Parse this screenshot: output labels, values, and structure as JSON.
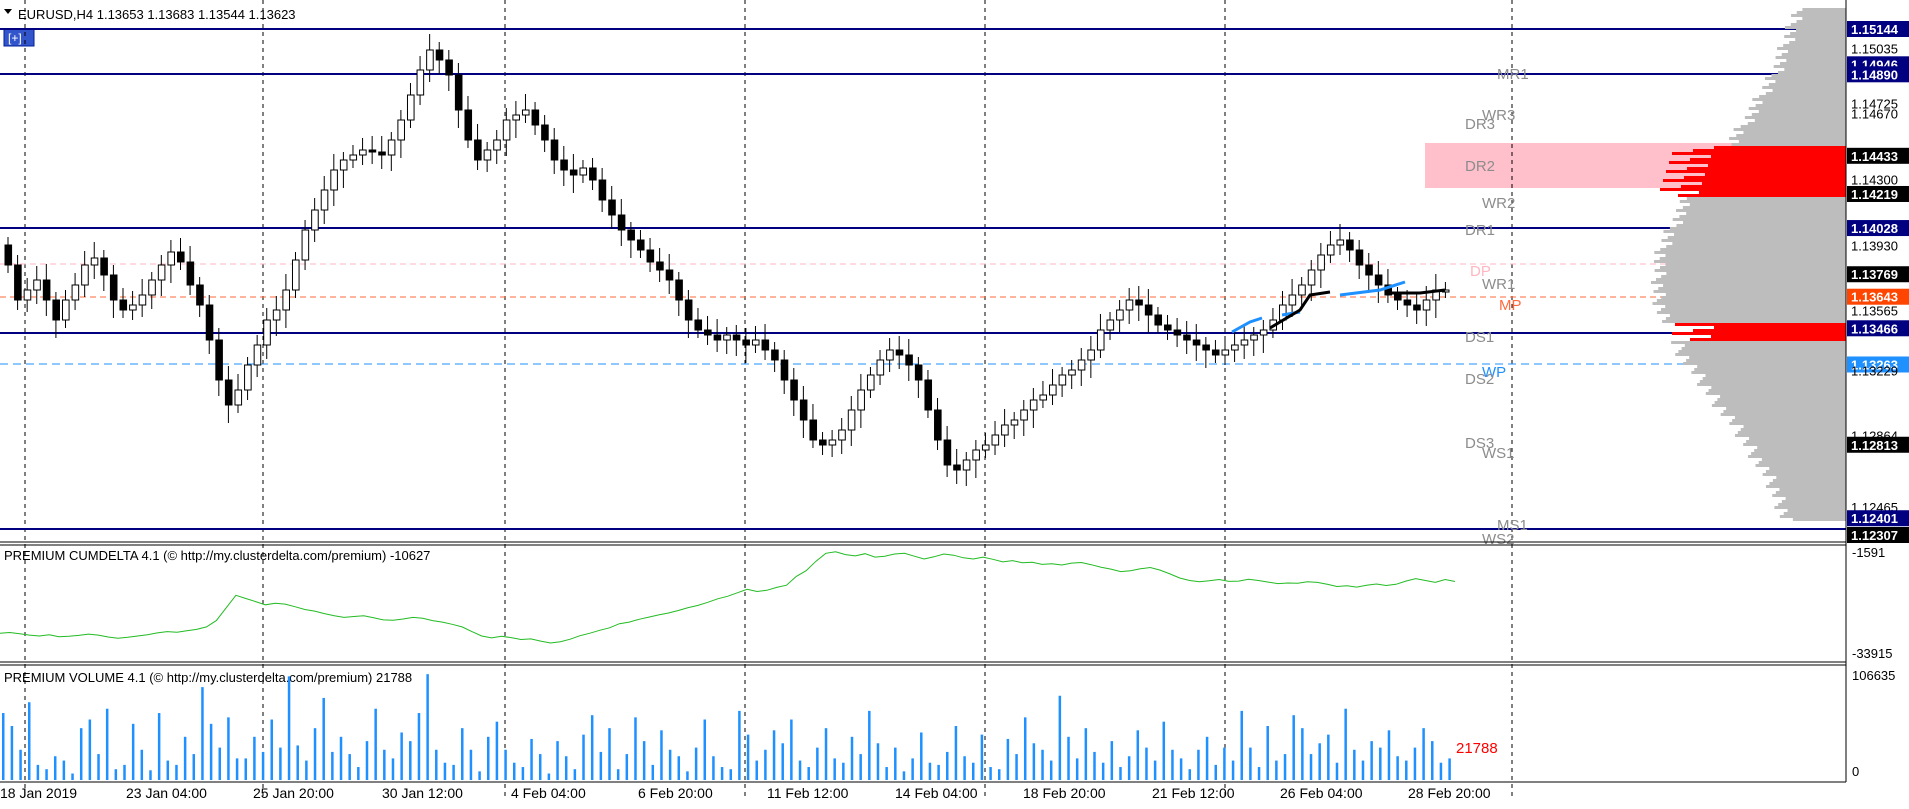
{
  "main": {
    "title": "EURUSD,H4  1.13653 1.13683 1.13544 1.13623",
    "expand_button": "[+]"
  },
  "price_scale": {
    "labels": [
      "1.15144",
      "1.15035",
      "1.14946",
      "1.14890",
      "1.14725",
      "1.14670",
      "1.14433",
      "1.14300",
      "1.14219",
      "1.14028",
      "1.13930",
      "1.13769",
      "1.13643",
      "1.13565",
      "1.13466",
      "1.13263",
      "1.13229",
      "1.12864",
      "1.12813",
      "1.12465",
      "1.12401",
      "1.12307"
    ],
    "highlighted": {
      "1.15144": "#000080",
      "1.14946": "#000080",
      "1.14890": "#000080",
      "1.14028": "#000080",
      "1.13466": "#000080",
      "1.12401": "#000080",
      "1.14433": "#000000",
      "1.14219": "#000000",
      "1.13769": "#000000",
      "1.12813": "#000000",
      "1.12307": "#000000",
      "1.13643": "#ff4500",
      "1.13263": "#1e90ff"
    }
  },
  "pivots": [
    "MR1",
    "WR3",
    "DR3",
    "DR2",
    "WR2",
    "DR1",
    "DP",
    "WR1",
    "MP",
    "DS1",
    "WP",
    "DS2",
    "DS3",
    "WS1",
    "MS1",
    "WS2"
  ],
  "time_axis": [
    "18 Jan 2019",
    "23 Jan 04:00",
    "25 Jan 20:00",
    "30 Jan 12:00",
    "4 Feb 04:00",
    "6 Feb 20:00",
    "11 Feb 12:00",
    "14 Feb 04:00",
    "18 Feb 20:00",
    "21 Feb 12:00",
    "26 Feb 04:00",
    "28 Feb 20:00"
  ],
  "cumdelta": {
    "title": "PREMIUM CUMDELTA 4.1 (© http://my.clusterdelta.com/premium) -10627",
    "scale_top": "-1591",
    "scale_bottom": "-33915",
    "values": [
      -27000,
      -26800,
      -27200,
      -27600,
      -27900,
      -27500,
      -28100,
      -28000,
      -27700,
      -27300,
      -27600,
      -28200,
      -28600,
      -28300,
      -27900,
      -27500,
      -26900,
      -26500,
      -26700,
      -26200,
      -25800,
      -25000,
      -23000,
      -19000,
      -15000,
      -16000,
      -17000,
      -18000,
      -17500,
      -17800,
      -18600,
      -19500,
      -20000,
      -20800,
      -21500,
      -22000,
      -21700,
      -21500,
      -22100,
      -22800,
      -22900,
      -22500,
      -22000,
      -22300,
      -23000,
      -23500,
      -24200,
      -25000,
      -26500,
      -27900,
      -28500,
      -28000,
      -28400,
      -29000,
      -28800,
      -29500,
      -30100,
      -29700,
      -28900,
      -27800,
      -27000,
      -26100,
      -25300,
      -24000,
      -23500,
      -22600,
      -21900,
      -21200,
      -20600,
      -19800,
      -18900,
      -18200,
      -17200,
      -16100,
      -15300,
      -14200,
      -13100,
      -13800,
      -13400,
      -12500,
      -11800,
      -9000,
      -7200,
      -4200,
      -1700,
      -1200,
      -2100,
      -2500,
      -1800,
      -2900,
      -2600,
      -1900,
      -1700,
      -2600,
      -3500,
      -2800,
      -1900,
      -2300,
      -3100,
      -3500,
      -2900,
      -3600,
      -4400,
      -4000,
      -4700,
      -4500,
      -5200,
      -5000,
      -5400,
      -4800,
      -4600,
      -5300,
      -6100,
      -6700,
      -7500,
      -7200,
      -6600,
      -6200,
      -7000,
      -8200,
      -9500,
      -10300,
      -10700,
      -10400,
      -10000,
      -10600,
      -10500,
      -9900,
      -10300,
      -10800,
      -11300,
      -11100,
      -11200,
      -10700,
      -10900,
      -11500,
      -12200,
      -12000,
      -12400,
      -11800,
      -11400,
      -11900,
      -11500,
      -10500,
      -9700,
      -10300,
      -10900,
      -10000,
      -10627
    ]
  },
  "volume": {
    "title": "PREMIUM VOLUME 4.1 (© http://my.clusterdelta.com/premium) 21788",
    "scale_top": "106635",
    "scale_bottom": "0",
    "last_value": "21788",
    "bars": [
      62,
      50,
      28,
      72,
      14,
      10,
      22,
      18,
      6,
      48,
      56,
      24,
      66,
      10,
      14,
      52,
      28,
      9,
      62,
      18,
      14,
      40,
      24,
      86,
      52,
      30,
      58,
      20,
      20,
      40,
      26,
      56,
      30,
      96,
      32,
      18,
      48,
      76,
      26,
      40,
      24,
      12,
      36,
      66,
      28,
      20,
      44,
      36,
      62,
      98,
      28,
      16,
      14,
      48,
      28,
      8,
      40,
      54,
      28,
      16,
      12,
      38,
      24,
      6,
      36,
      22,
      10,
      42,
      60,
      26,
      48,
      10,
      24,
      58,
      36,
      14,
      46,
      28,
      22,
      8,
      30,
      56,
      22,
      12,
      10,
      64,
      42,
      18,
      28,
      46,
      34,
      56,
      18,
      12,
      30,
      48,
      20,
      16,
      40,
      24,
      64,
      34,
      12,
      30,
      8,
      20,
      44,
      16,
      14,
      26,
      50,
      22,
      16,
      42,
      12,
      10,
      38,
      24,
      58,
      34,
      28,
      18,
      78,
      40,
      20,
      48,
      26,
      16,
      36,
      12,
      22,
      46,
      30,
      18,
      54,
      28,
      20,
      10,
      28,
      40,
      14,
      30,
      18,
      64,
      30,
      12,
      50,
      18,
      24,
      60,
      48,
      24,
      34,
      42,
      16,
      66,
      28,
      18,
      36,
      30,
      46,
      22,
      18,
      30,
      48,
      36,
      16,
      20
    ]
  }
}
